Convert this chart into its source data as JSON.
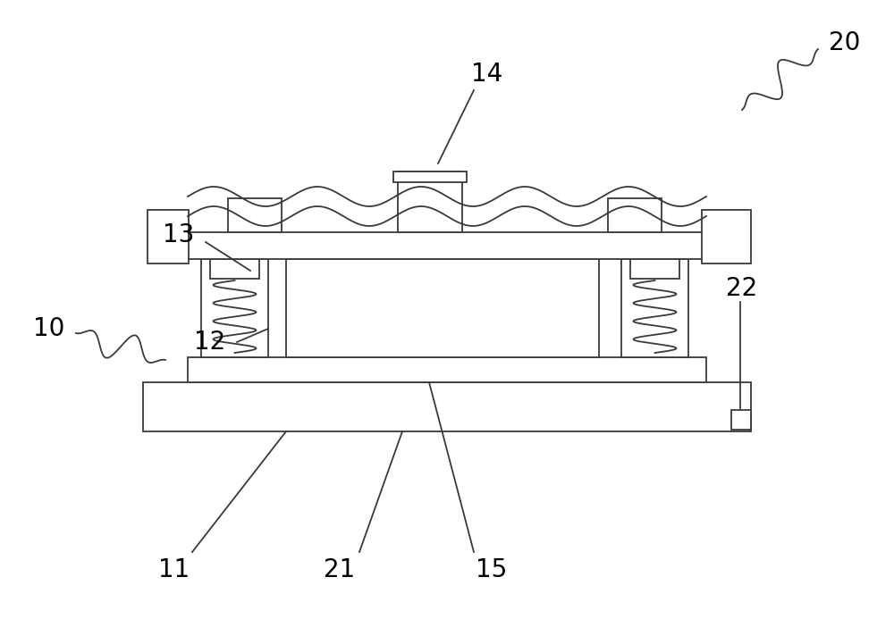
{
  "bg_color": "white",
  "line_color": "#3a3a3a",
  "lw_main": 1.3,
  "fig_width": 10.0,
  "fig_height": 6.93,
  "label_fontsize": 20
}
